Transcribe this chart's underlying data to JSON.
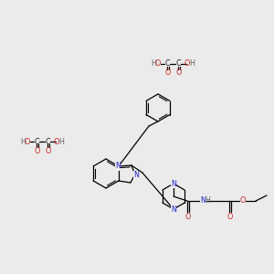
{
  "background_color": "#ebebeb",
  "fig_size": [
    3.0,
    3.0
  ],
  "dpi": 100,
  "C": "#1a1a1a",
  "N": "#2020cc",
  "O": "#cc2020",
  "H": "#666666",
  "lw": 0.9,
  "fs": 5.8
}
